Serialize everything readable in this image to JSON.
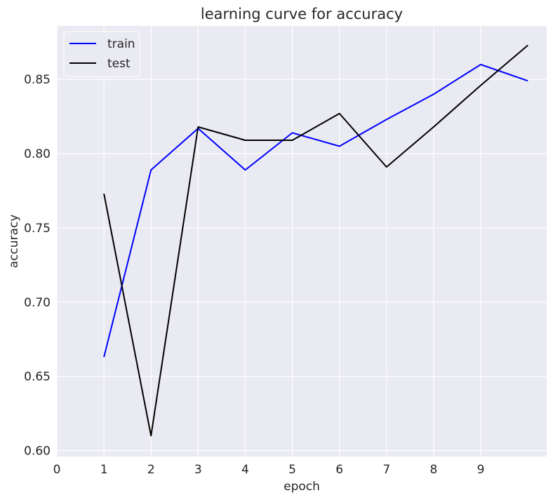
{
  "chart_data": {
    "type": "line",
    "title": "learning curve for accuracy",
    "xlabel": "epoch",
    "ylabel": "accuracy",
    "xlim": [
      0,
      10.4
    ],
    "ylim": [
      0.596,
      0.886
    ],
    "xticks": [
      0,
      1,
      2,
      3,
      4,
      5,
      6,
      7,
      8,
      9
    ],
    "xtick_labels": [
      "0",
      "1",
      "2",
      "3",
      "4",
      "5",
      "6",
      "7",
      "8",
      "9"
    ],
    "yticks": [
      0.6,
      0.65,
      0.7,
      0.75,
      0.8,
      0.85
    ],
    "ytick_labels": [
      "0.60",
      "0.65",
      "0.70",
      "0.75",
      "0.80",
      "0.85"
    ],
    "grid": true,
    "legend_position": "top-left",
    "background_color": "#eaeaf2",
    "series": [
      {
        "name": "train",
        "color": "#0000ff",
        "x": [
          1,
          2,
          3,
          4,
          5,
          6,
          7,
          8,
          9,
          10
        ],
        "y": [
          0.663,
          0.789,
          0.817,
          0.789,
          0.814,
          0.805,
          0.823,
          0.84,
          0.86,
          0.849
        ]
      },
      {
        "name": "test",
        "color": "#000000",
        "x": [
          1,
          2,
          3,
          4,
          5,
          6,
          7,
          8,
          9,
          10
        ],
        "y": [
          0.773,
          0.61,
          0.818,
          0.809,
          0.809,
          0.827,
          0.791,
          0.818,
          0.846,
          0.873
        ]
      }
    ]
  }
}
